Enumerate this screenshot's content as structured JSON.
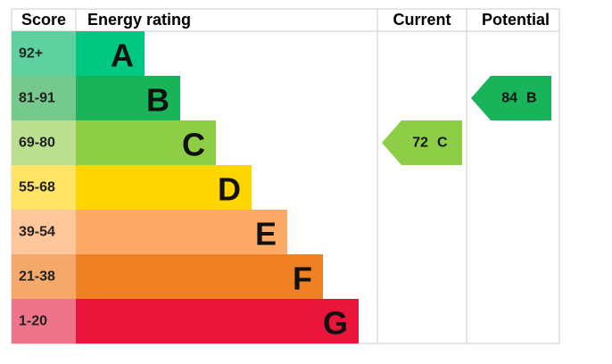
{
  "chart_data": {
    "type": "epc",
    "headers": [
      "Score",
      "Energy rating",
      "Current",
      "Potential"
    ],
    "bands": [
      {
        "score": "92+",
        "letter": "A",
        "color": "#00c781",
        "score_color": "#5fd0a0"
      },
      {
        "score": "81-91",
        "letter": "B",
        "color": "#19b459",
        "score_color": "#75c98c"
      },
      {
        "score": "69-80",
        "letter": "C",
        "color": "#8dce46",
        "score_color": "#b9df8f"
      },
      {
        "score": "55-68",
        "letter": "D",
        "color": "#ffd500",
        "score_color": "#ffe466"
      },
      {
        "score": "39-54",
        "letter": "E",
        "color": "#fcaa65",
        "score_color": "#fdc79b"
      },
      {
        "score": "21-38",
        "letter": "F",
        "color": "#ef8023",
        "score_color": "#f4a96b"
      },
      {
        "score": "1-20",
        "letter": "G",
        "color": "#e9153b",
        "score_color": "#f07489"
      }
    ],
    "current": {
      "value": 72,
      "letter": "C"
    },
    "potential": {
      "value": 84,
      "letter": "B"
    }
  }
}
